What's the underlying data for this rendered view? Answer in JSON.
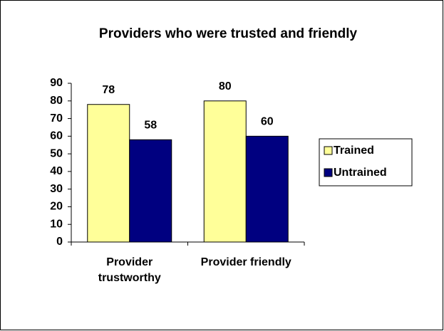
{
  "chart_data": {
    "type": "bar",
    "title": "Providers who were trusted and friendly",
    "categories": [
      "Provider trustworthy",
      "Provider friendly"
    ],
    "series": [
      {
        "name": "Trained",
        "color": "#ffff99",
        "values": [
          78,
          80
        ]
      },
      {
        "name": "Untrained",
        "color": "#000080",
        "values": [
          58,
          60
        ]
      }
    ],
    "ylim": [
      0,
      90
    ],
    "yticks": [
      0,
      10,
      20,
      30,
      40,
      50,
      60,
      70,
      80,
      90
    ],
    "grid": false,
    "legend": "right"
  }
}
